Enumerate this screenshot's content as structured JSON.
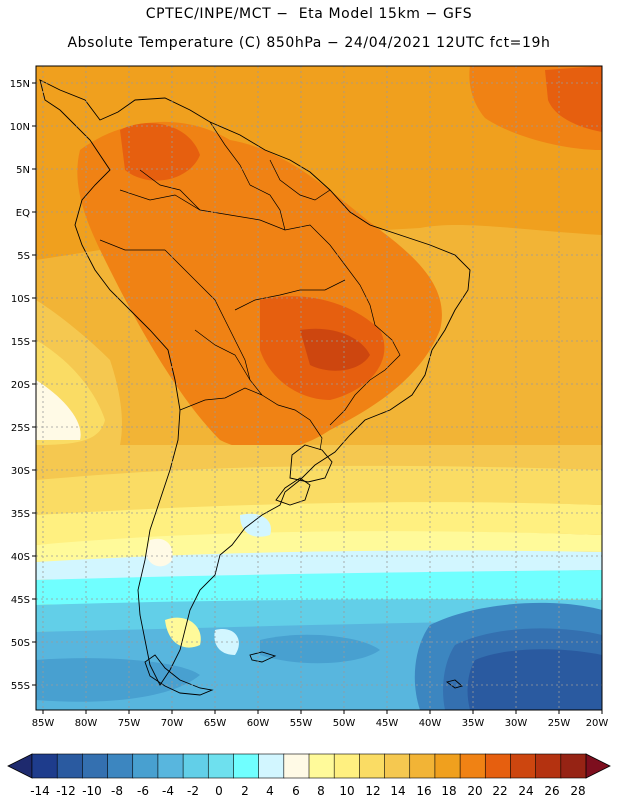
{
  "header": {
    "line1": "CPTEC/INPE/MCT −  Eta Model 15km − GFS",
    "line2": "Absolute Temperature (C) 850hPa − 24/04/2021 12UTC fct=19h"
  },
  "lat_labels": [
    "15N",
    "10N",
    "5N",
    "EQ",
    "5S",
    "10S",
    "15S",
    "20S",
    "25S",
    "30S",
    "35S",
    "40S",
    "45S",
    "50S",
    "55S"
  ],
  "lon_labels": [
    "85W",
    "80W",
    "75W",
    "70W",
    "65W",
    "60W",
    "55W",
    "50W",
    "45W",
    "40W",
    "35W",
    "30W",
    "25W",
    "20W"
  ],
  "colorbar": {
    "colors": [
      "#1e3c8c",
      "#2a5aa0",
      "#3470b0",
      "#3c86c0",
      "#48a0d0",
      "#58b6de",
      "#62cfe8",
      "#6ee0ee",
      "#70ffff",
      "#d2f6ff",
      "#fffae6",
      "#fffa9a",
      "#fff080",
      "#fadc64",
      "#f5c850",
      "#f2b436",
      "#f0a01e",
      "#f08214",
      "#e65f0f",
      "#cd460f",
      "#b43210",
      "#962314"
    ],
    "left_arrow_color": "#1e2a6e",
    "right_arrow_color": "#7d0e1e",
    "labels": [
      "-14",
      "-12",
      "-10",
      "-8",
      "-6",
      "-4",
      "-2",
      "0",
      "2",
      "4",
      "6",
      "8",
      "10",
      "12",
      "14",
      "16",
      "18",
      "20",
      "22",
      "24",
      "26",
      "28"
    ]
  }
}
